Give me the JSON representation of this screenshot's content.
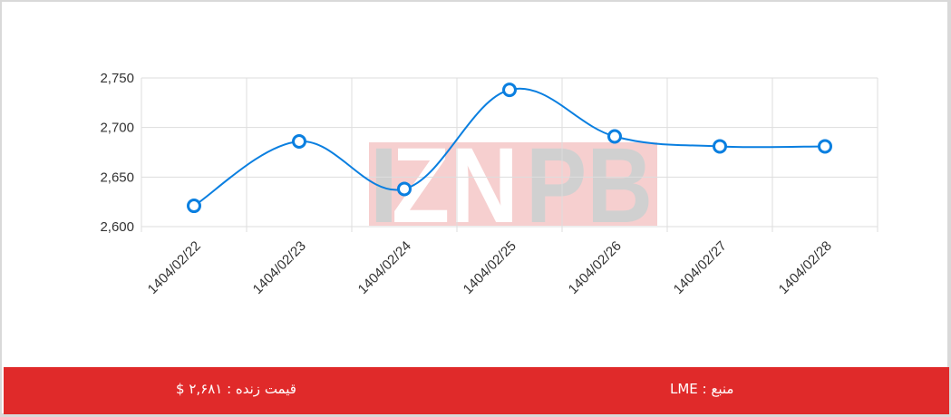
{
  "chart_data": {
    "type": "line",
    "categories": [
      "1404/02/22",
      "1404/02/23",
      "1404/02/24",
      "1404/02/25",
      "1404/02/26",
      "1404/02/27",
      "1404/02/28"
    ],
    "values": [
      2621,
      2686,
      2638,
      2738,
      2691,
      2681,
      2681
    ],
    "yticks": [
      "2,600",
      "2,650",
      "2,700",
      "2,750"
    ],
    "ylim": [
      2600,
      2750
    ],
    "grid": true,
    "smooth": true,
    "line_color": "#0a7fe0",
    "title": "",
    "xlabel": "",
    "ylabel": ""
  },
  "watermark": "IZNPB",
  "footer": {
    "live_price": "قیمت زنده : ۲,۶۸۱ $",
    "source": "منبع : LME",
    "color": "#e02a2a"
  }
}
